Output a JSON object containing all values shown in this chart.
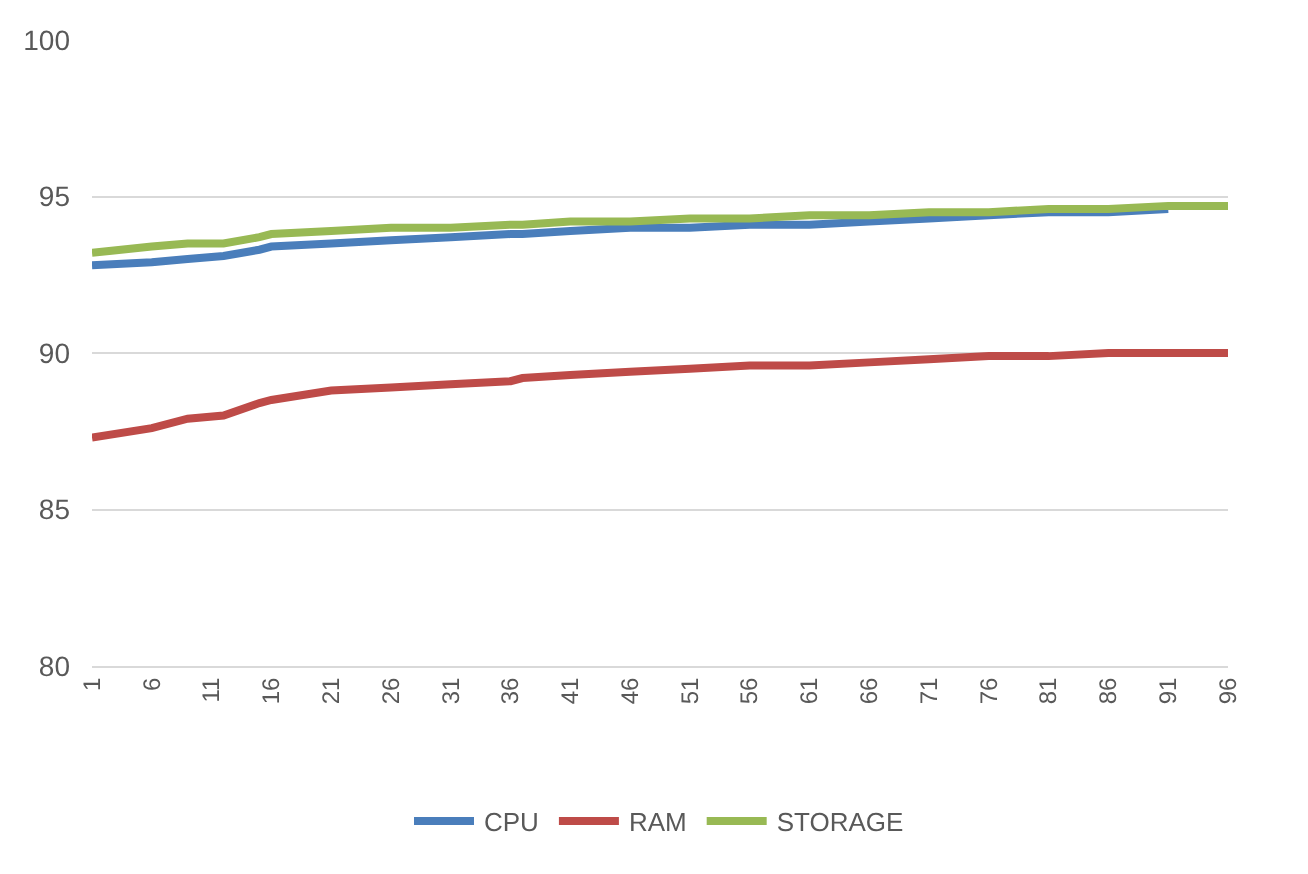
{
  "chart_data": {
    "type": "line",
    "x": [
      1,
      6,
      9,
      12,
      15,
      16,
      21,
      26,
      31,
      36,
      37,
      41,
      46,
      51,
      56,
      61,
      66,
      71,
      76,
      81,
      86,
      91,
      96
    ],
    "series": [
      {
        "name": "CPU",
        "color": "#4a7ebb",
        "values": [
          92.8,
          92.9,
          93.0,
          93.1,
          93.3,
          93.4,
          93.5,
          93.6,
          93.7,
          93.8,
          93.8,
          93.9,
          94.0,
          94.0,
          94.1,
          94.1,
          94.2,
          94.3,
          94.4,
          94.5,
          94.5,
          94.6,
          null
        ]
      },
      {
        "name": "RAM",
        "color": "#be4b48",
        "values": [
          87.3,
          87.6,
          87.9,
          88.0,
          88.4,
          88.5,
          88.8,
          88.9,
          89.0,
          89.1,
          89.2,
          89.3,
          89.4,
          89.5,
          89.6,
          89.6,
          89.7,
          89.8,
          89.9,
          89.9,
          90.0,
          90.0,
          90.0
        ]
      },
      {
        "name": "STORAGE",
        "color": "#98b954",
        "values": [
          93.2,
          93.4,
          93.5,
          93.5,
          93.7,
          93.8,
          93.9,
          94.0,
          94.0,
          94.1,
          94.1,
          94.2,
          94.2,
          94.3,
          94.3,
          94.4,
          94.4,
          94.5,
          94.5,
          94.6,
          94.6,
          94.7,
          94.7
        ]
      }
    ],
    "xlim": [
      1,
      96
    ],
    "xticks": [
      1,
      6,
      11,
      16,
      21,
      26,
      31,
      36,
      41,
      46,
      51,
      56,
      61,
      66,
      71,
      76,
      81,
      86,
      91,
      96
    ],
    "ylim": [
      80,
      100
    ],
    "yticks": [
      80,
      85,
      90,
      95,
      100
    ],
    "grid": "y",
    "legend": "bottom",
    "marker": "none",
    "line_style": "solid"
  }
}
